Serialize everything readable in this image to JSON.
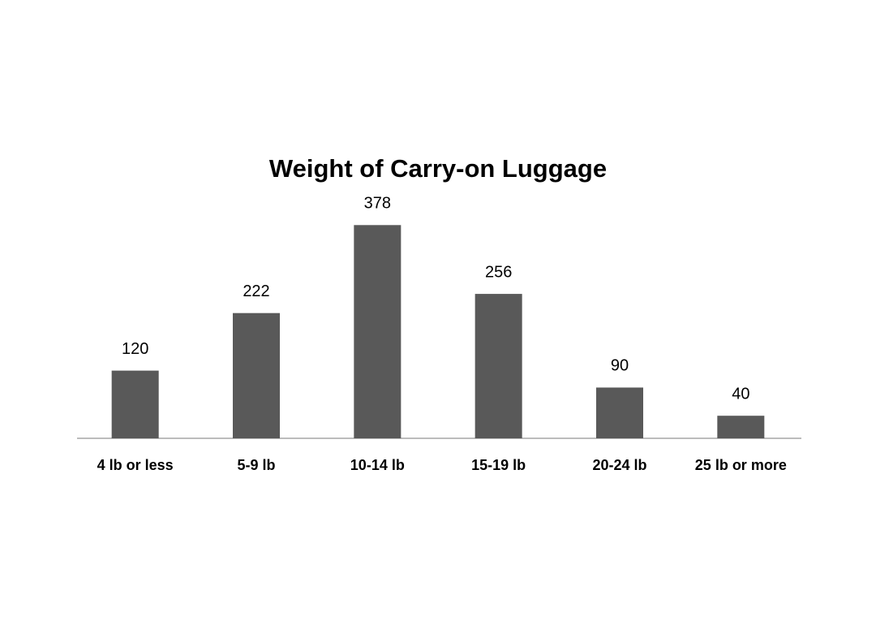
{
  "chart_data": {
    "type": "bar",
    "title": "Weight of Carry-on Luggage",
    "categories": [
      "4 lb or less",
      "5-9 lb",
      "10-14 lb",
      "15-19 lb",
      "20-24 lb",
      "25 lb or more"
    ],
    "values": [
      120,
      222,
      378,
      256,
      90,
      40
    ],
    "color": "#595959"
  }
}
